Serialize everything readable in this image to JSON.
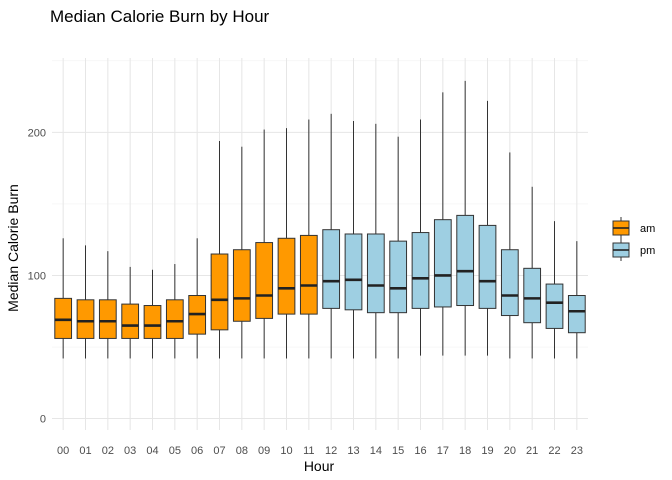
{
  "chart_data": {
    "type": "boxplot",
    "title": "Median Calorie Burn by Hour",
    "xlabel": "Hour",
    "ylabel": "Median Calorie Burn",
    "ylim": [
      -8,
      252
    ],
    "yticks": [
      0,
      100,
      200
    ],
    "grid": true,
    "legend_position": "right",
    "series": [
      {
        "name": "am",
        "color": "#ff9900"
      },
      {
        "name": "pm",
        "color": "#9ecfe2"
      }
    ],
    "boxes": [
      {
        "hour": "00",
        "group": "am",
        "min": 42,
        "q1": 56,
        "median": 69,
        "q3": 84,
        "max": 126
      },
      {
        "hour": "01",
        "group": "am",
        "min": 42,
        "q1": 56,
        "median": 68,
        "q3": 83,
        "max": 121
      },
      {
        "hour": "02",
        "group": "am",
        "min": 42,
        "q1": 56,
        "median": 68,
        "q3": 83,
        "max": 117
      },
      {
        "hour": "03",
        "group": "am",
        "min": 42,
        "q1": 56,
        "median": 65,
        "q3": 80,
        "max": 106
      },
      {
        "hour": "04",
        "group": "am",
        "min": 42,
        "q1": 56,
        "median": 65,
        "q3": 79,
        "max": 104
      },
      {
        "hour": "05",
        "group": "am",
        "min": 42,
        "q1": 56,
        "median": 68,
        "q3": 83,
        "max": 108
      },
      {
        "hour": "06",
        "group": "am",
        "min": 42,
        "q1": 59,
        "median": 73,
        "q3": 86,
        "max": 126
      },
      {
        "hour": "07",
        "group": "am",
        "min": 42,
        "q1": 62,
        "median": 83,
        "q3": 115,
        "max": 194
      },
      {
        "hour": "08",
        "group": "am",
        "min": 42,
        "q1": 68,
        "median": 84,
        "q3": 118,
        "max": 190
      },
      {
        "hour": "09",
        "group": "am",
        "min": 42,
        "q1": 70,
        "median": 86,
        "q3": 123,
        "max": 202
      },
      {
        "hour": "10",
        "group": "am",
        "min": 42,
        "q1": 73,
        "median": 91,
        "q3": 126,
        "max": 203
      },
      {
        "hour": "11",
        "group": "am",
        "min": 42,
        "q1": 73,
        "median": 93,
        "q3": 128,
        "max": 209
      },
      {
        "hour": "12",
        "group": "pm",
        "min": 42,
        "q1": 77,
        "median": 96,
        "q3": 132,
        "max": 213
      },
      {
        "hour": "13",
        "group": "pm",
        "min": 42,
        "q1": 76,
        "median": 97,
        "q3": 129,
        "max": 208
      },
      {
        "hour": "14",
        "group": "pm",
        "min": 42,
        "q1": 74,
        "median": 93,
        "q3": 129,
        "max": 206
      },
      {
        "hour": "15",
        "group": "pm",
        "min": 42,
        "q1": 74,
        "median": 91,
        "q3": 124,
        "max": 197
      },
      {
        "hour": "16",
        "group": "pm",
        "min": 44,
        "q1": 77,
        "median": 98,
        "q3": 130,
        "max": 209
      },
      {
        "hour": "17",
        "group": "pm",
        "min": 44,
        "q1": 78,
        "median": 100,
        "q3": 139,
        "max": 228
      },
      {
        "hour": "18",
        "group": "pm",
        "min": 44,
        "q1": 79,
        "median": 103,
        "q3": 142,
        "max": 236
      },
      {
        "hour": "19",
        "group": "pm",
        "min": 44,
        "q1": 77,
        "median": 96,
        "q3": 135,
        "max": 222
      },
      {
        "hour": "20",
        "group": "pm",
        "min": 42,
        "q1": 72,
        "median": 86,
        "q3": 118,
        "max": 186
      },
      {
        "hour": "21",
        "group": "pm",
        "min": 42,
        "q1": 67,
        "median": 84,
        "q3": 105,
        "max": 162
      },
      {
        "hour": "22",
        "group": "pm",
        "min": 42,
        "q1": 63,
        "median": 81,
        "q3": 94,
        "max": 138
      },
      {
        "hour": "23",
        "group": "pm",
        "min": 42,
        "q1": 60,
        "median": 75,
        "q3": 86,
        "max": 124
      }
    ]
  }
}
